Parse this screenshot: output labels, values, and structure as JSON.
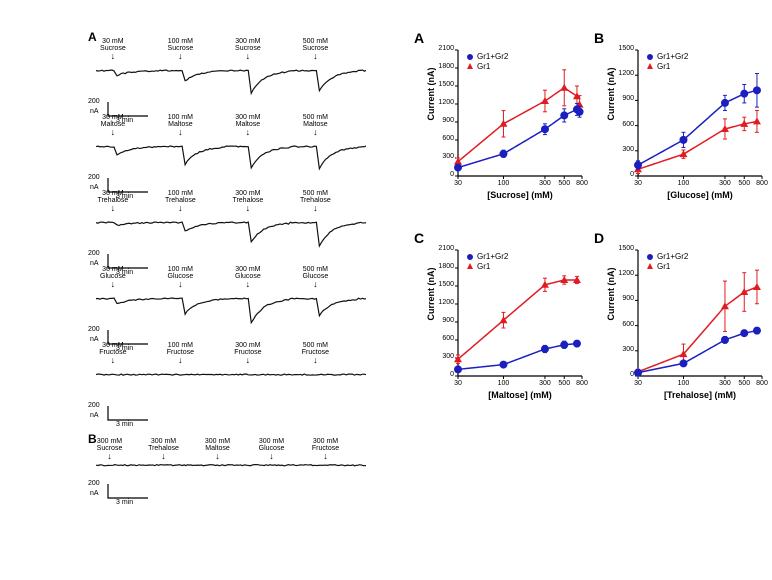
{
  "colors": {
    "gr1gr2": "#1b1fbf",
    "gr1": "#e11b22",
    "trace": "#111111",
    "axis": "#000000",
    "bg": "#ffffff"
  },
  "left": {
    "panelA_label": "A",
    "panelB_label": "B",
    "scale": {
      "y_label": "200",
      "y_unit": "nA",
      "x_label": "3 min"
    },
    "rows": [
      {
        "sugar": "Sucrose",
        "concs": [
          30,
          100,
          300,
          500
        ],
        "depths": [
          0.18,
          0.38,
          0.82,
          0.72
        ]
      },
      {
        "sugar": "Maltose",
        "concs": [
          30,
          100,
          300,
          500
        ],
        "depths": [
          0.3,
          0.65,
          0.78,
          0.8
        ]
      },
      {
        "sugar": "Trehalose",
        "concs": [
          30,
          100,
          300,
          500
        ],
        "depths": [
          0.1,
          0.32,
          0.7,
          0.85
        ]
      },
      {
        "sugar": "Glucose",
        "concs": [
          30,
          100,
          300,
          500
        ],
        "depths": [
          0.2,
          0.55,
          0.9,
          0.62
        ]
      },
      {
        "sugar": "Fructose",
        "concs": [
          30,
          100,
          300,
          500
        ],
        "depths": [
          0.0,
          0.0,
          0.0,
          0.0
        ]
      }
    ],
    "panelB": {
      "conc": 300,
      "sugars": [
        "Sucrose",
        "Trehalose",
        "Maltose",
        "Glucose",
        "Fructose"
      ],
      "depths": [
        0,
        0,
        0,
        0,
        0
      ]
    }
  },
  "right": {
    "common": {
      "x_ticks": [
        30,
        100,
        300,
        500,
        800
      ],
      "y_ticks_2100": [
        0,
        300,
        600,
        900,
        1200,
        1500,
        1800,
        2100
      ],
      "y_ticks_1500": [
        0,
        300,
        600,
        900,
        1200,
        1500
      ],
      "y_label": "Current (nA)",
      "legend": {
        "a": "Gr1+Gr2",
        "b": "Gr1"
      },
      "marker_size": 4,
      "line_width": 1.5,
      "font_axis": 9,
      "font_tick": 7
    },
    "panels": [
      {
        "id": "A",
        "x_label": "[Sucrose] (mM)",
        "ymax": 2100,
        "series": {
          "gr1gr2": {
            "x": [
              30,
              100,
              300,
              500,
              700,
              750
            ],
            "y": [
              140,
              370,
              780,
              1010,
              1110,
              1070
            ],
            "err": [
              40,
              60,
              90,
              110,
              100,
              90
            ]
          },
          "gr1": {
            "x": [
              30,
              100,
              300,
              500,
              700,
              750
            ],
            "y": [
              240,
              870,
              1250,
              1470,
              1330,
              1190
            ],
            "err": [
              60,
              220,
              180,
              300,
              170,
              150
            ]
          }
        }
      },
      {
        "id": "B",
        "x_label": "[Glucose] (mM)",
        "ymax": 1500,
        "series": {
          "gr1gr2": {
            "x": [
              30,
              100,
              300,
              500,
              700
            ],
            "y": [
              130,
              430,
              870,
              980,
              1020
            ],
            "err": [
              50,
              90,
              90,
              110,
              200
            ]
          },
          "gr1": {
            "x": [
              30,
              100,
              300,
              500,
              700
            ],
            "y": [
              80,
              260,
              560,
              620,
              650
            ],
            "err": [
              50,
              50,
              120,
              80,
              130
            ]
          }
        }
      },
      {
        "id": "C",
        "x_label": "[Maltose] (mM)",
        "ymax": 2100,
        "series": {
          "gr1gr2": {
            "x": [
              30,
              100,
              300,
              500,
              700
            ],
            "y": [
              110,
              190,
              450,
              520,
              540
            ],
            "err": [
              40,
              40,
              60,
              60,
              50
            ]
          },
          "gr1": {
            "x": [
              30,
              100,
              300,
              500,
              700
            ],
            "y": [
              280,
              930,
              1520,
              1600,
              1600
            ],
            "err": [
              70,
              130,
              110,
              70,
              60
            ]
          }
        }
      },
      {
        "id": "D",
        "x_label": "[Trehalose] (mM)",
        "ymax": 1500,
        "series": {
          "gr1gr2": {
            "x": [
              30,
              100,
              300,
              500,
              700
            ],
            "y": [
              40,
              150,
              430,
              510,
              540
            ],
            "err": [
              20,
              30,
              40,
              30,
              30
            ]
          },
          "gr1": {
            "x": [
              30,
              100,
              300,
              500,
              700
            ],
            "y": [
              50,
              260,
              830,
              1000,
              1060
            ],
            "err": [
              30,
              120,
              300,
              230,
              200
            ]
          }
        }
      }
    ]
  }
}
